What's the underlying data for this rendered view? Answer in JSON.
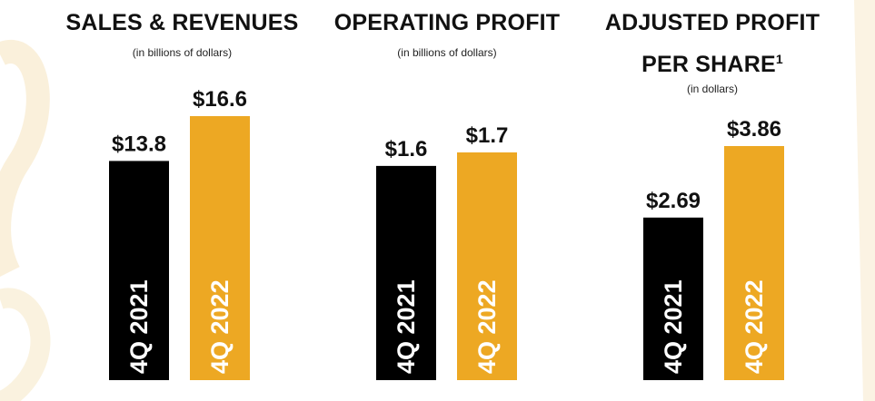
{
  "colors": {
    "black_bar": "#000000",
    "gold_bar": "#EDA823",
    "gold_tint": "#F3DEB0"
  },
  "panels": [
    {
      "title_line1": "SALES & REVENUES",
      "title_line2": "",
      "superscript": "",
      "subtitle": "(in billions of dollars)"
    },
    {
      "title_line1": "OPERATING PROFIT",
      "title_line2": "",
      "superscript": "",
      "subtitle": "(in billions of dollars)"
    },
    {
      "title_line1": "ADJUSTED PROFIT",
      "title_line2": "PER SHARE",
      "superscript": "1",
      "subtitle": "(in dollars)"
    }
  ],
  "chart_data": [
    {
      "type": "bar",
      "title": "SALES & REVENUES",
      "subtitle": "(in billions of dollars)",
      "categories": [
        "4Q 2021",
        "4Q 2022"
      ],
      "values": [
        13.8,
        16.6
      ],
      "value_labels": [
        "$13.8",
        "$16.6"
      ],
      "colors": [
        "#000000",
        "#EDA823"
      ]
    },
    {
      "type": "bar",
      "title": "OPERATING PROFIT",
      "subtitle": "(in billions of dollars)",
      "categories": [
        "4Q 2021",
        "4Q 2022"
      ],
      "values": [
        1.6,
        1.7
      ],
      "value_labels": [
        "$1.6",
        "$1.7"
      ],
      "colors": [
        "#000000",
        "#EDA823"
      ]
    },
    {
      "type": "bar",
      "title": "ADJUSTED PROFIT PER SHARE",
      "subtitle": "(in dollars)",
      "categories": [
        "4Q 2021",
        "4Q 2022"
      ],
      "values": [
        2.69,
        3.86
      ],
      "value_labels": [
        "$2.69",
        "$3.86"
      ],
      "colors": [
        "#000000",
        "#EDA823"
      ]
    }
  ]
}
